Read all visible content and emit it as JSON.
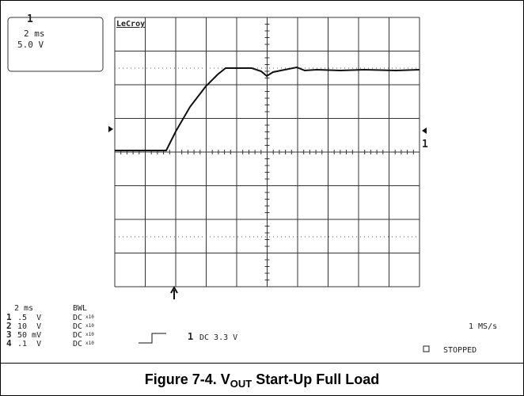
{
  "scope": {
    "readout": {
      "channel": "1",
      "timebase": "2 ms",
      "volts": "5.0 V"
    },
    "brand": "LeCroy",
    "trace_marker": "1",
    "bottom": {
      "timebase": "2 ms",
      "bwl": "BWL",
      "channels": [
        {
          "id": "1",
          "scale": ".5  V",
          "coupling": "DC"
        },
        {
          "id": "2",
          "scale": "10  V",
          "coupling": "DC"
        },
        {
          "id": "3",
          "scale": "50 mV",
          "coupling": "DC"
        },
        {
          "id": "4",
          "scale": ".1  V",
          "coupling": "DC"
        }
      ],
      "probe": "x10",
      "trigger_channel": "1",
      "trigger": "DC 3.3 V",
      "sample_rate": "1 MS/s",
      "status": "STOPPED"
    }
  },
  "caption": {
    "prefix": "Figure 7-4. V",
    "subscript": "OUT",
    "suffix": " Start-Up Full Load"
  }
}
